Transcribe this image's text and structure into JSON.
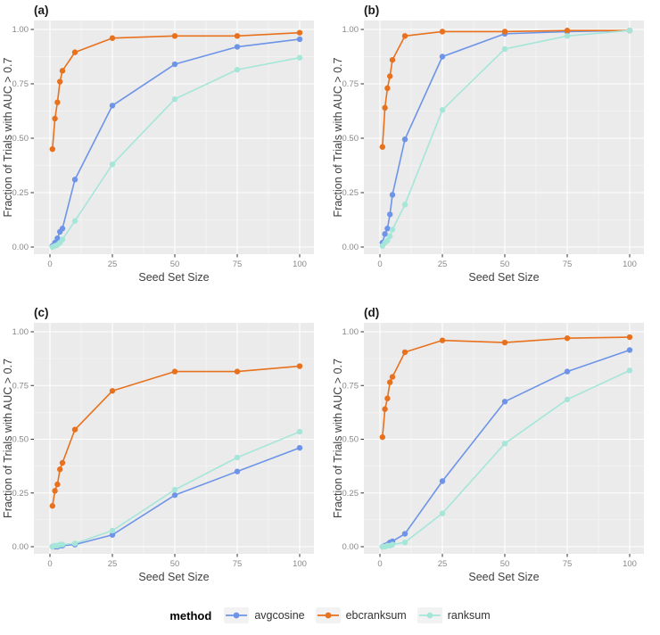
{
  "figure": {
    "x_axis_label": "Seed Set Size",
    "y_axis_label": "Fraction of Trials with AUC > 0.7",
    "x_tick_labels": [
      "0",
      "25",
      "50",
      "75",
      "100"
    ],
    "y_tick_labels": [
      "0.00",
      "0.25",
      "0.50",
      "0.75",
      "1.00"
    ],
    "panel_labels": [
      "(a)",
      "(b)",
      "(c)",
      "(d)"
    ]
  },
  "legend": {
    "title": "method",
    "entries": [
      {
        "key": "avgcosine",
        "label": "avgcosine"
      },
      {
        "key": "ebcranksum",
        "label": "ebcranksum"
      },
      {
        "key": "ranksum",
        "label": "ranksum"
      }
    ]
  },
  "colors": {
    "avgcosine": "#6D94E8",
    "ebcranksum": "#E8711E",
    "ranksum": "#A5E6D9",
    "panel_background": "#EBEBEB",
    "gridline_major": "#FFFFFF",
    "gridline_minor": "#FFFFFF",
    "tick_mark": "#333333",
    "tick_label": "#888888",
    "axis_title": "#404040",
    "panel_label": "#1A1A1A",
    "legend_key_background": "#F2F2F2"
  },
  "chart_data": [
    {
      "panel_label": "(a)",
      "type": "line",
      "xlabel": "Seed Set Size",
      "ylabel": "Fraction of Trials with AUC > 0.7",
      "xlim": [
        0,
        100
      ],
      "ylim": [
        0,
        1
      ],
      "x_ticks": [
        0,
        25,
        50,
        75,
        100
      ],
      "y_ticks": [
        0,
        0.25,
        0.5,
        0.75,
        1
      ],
      "x_minor_ticks": [
        12.5,
        37.5,
        62.5,
        87.5
      ],
      "y_minor_ticks": [
        0.125,
        0.375,
        0.625,
        0.875
      ],
      "grid": true,
      "x": [
        1,
        2,
        3,
        4,
        5,
        10,
        25,
        50,
        75,
        100
      ],
      "series": [
        {
          "name": "avgcosine",
          "values": [
            0.005,
            0.02,
            0.04,
            0.07,
            0.085,
            0.31,
            0.65,
            0.84,
            0.92,
            0.955
          ]
        },
        {
          "name": "ebcranksum",
          "values": [
            0.45,
            0.59,
            0.665,
            0.76,
            0.81,
            0.895,
            0.96,
            0.97,
            0.97,
            0.985
          ]
        },
        {
          "name": "ranksum",
          "values": [
            0.0,
            0.005,
            0.01,
            0.02,
            0.035,
            0.12,
            0.38,
            0.68,
            0.815,
            0.87
          ]
        }
      ]
    },
    {
      "panel_label": "(b)",
      "type": "line",
      "xlabel": "Seed Set Size",
      "ylabel": "Fraction of Trials with AUC > 0.7",
      "xlim": [
        0,
        100
      ],
      "ylim": [
        0,
        1
      ],
      "x_ticks": [
        0,
        25,
        50,
        75,
        100
      ],
      "y_ticks": [
        0,
        0.25,
        0.5,
        0.75,
        1
      ],
      "x_minor_ticks": [
        12.5,
        37.5,
        62.5,
        87.5
      ],
      "y_minor_ticks": [
        0.125,
        0.375,
        0.625,
        0.875
      ],
      "grid": true,
      "x": [
        1,
        2,
        3,
        4,
        5,
        10,
        25,
        50,
        75,
        100
      ],
      "series": [
        {
          "name": "avgcosine",
          "values": [
            0.02,
            0.06,
            0.085,
            0.15,
            0.24,
            0.495,
            0.875,
            0.98,
            0.99,
            0.995
          ]
        },
        {
          "name": "ebcranksum",
          "values": [
            0.46,
            0.64,
            0.73,
            0.785,
            0.86,
            0.97,
            0.99,
            0.99,
            0.995,
            0.995
          ]
        },
        {
          "name": "ranksum",
          "values": [
            0.005,
            0.02,
            0.03,
            0.05,
            0.08,
            0.195,
            0.63,
            0.91,
            0.97,
            0.995
          ]
        }
      ]
    },
    {
      "panel_label": "(c)",
      "type": "line",
      "xlabel": "Seed Set Size",
      "ylabel": "Fraction of Trials with AUC > 0.7",
      "xlim": [
        0,
        100
      ],
      "ylim": [
        0,
        1
      ],
      "x_ticks": [
        0,
        25,
        50,
        75,
        100
      ],
      "y_ticks": [
        0,
        0.25,
        0.5,
        0.75,
        1
      ],
      "x_minor_ticks": [
        12.5,
        37.5,
        62.5,
        87.5
      ],
      "y_minor_ticks": [
        0.125,
        0.375,
        0.625,
        0.875
      ],
      "grid": true,
      "x": [
        1,
        2,
        3,
        4,
        5,
        10,
        25,
        50,
        75,
        100
      ],
      "series": [
        {
          "name": "avgcosine",
          "values": [
            0.0,
            0.0,
            0.0,
            0.005,
            0.005,
            0.01,
            0.055,
            0.24,
            0.35,
            0.46
          ]
        },
        {
          "name": "ebcranksum",
          "values": [
            0.19,
            0.26,
            0.29,
            0.36,
            0.39,
            0.545,
            0.725,
            0.815,
            0.815,
            0.84
          ]
        },
        {
          "name": "ranksum",
          "values": [
            0.0,
            0.005,
            0.005,
            0.01,
            0.01,
            0.015,
            0.075,
            0.265,
            0.415,
            0.535
          ]
        }
      ]
    },
    {
      "panel_label": "(d)",
      "type": "line",
      "xlabel": "Seed Set Size",
      "ylabel": "Fraction of Trials with AUC > 0.7",
      "xlim": [
        0,
        100
      ],
      "ylim": [
        0,
        1
      ],
      "x_ticks": [
        0,
        25,
        50,
        75,
        100
      ],
      "y_ticks": [
        0,
        0.25,
        0.5,
        0.75,
        1
      ],
      "x_minor_ticks": [
        12.5,
        37.5,
        62.5,
        87.5
      ],
      "y_minor_ticks": [
        0.125,
        0.375,
        0.625,
        0.875
      ],
      "grid": true,
      "x": [
        1,
        2,
        3,
        4,
        5,
        10,
        25,
        50,
        75,
        100
      ],
      "series": [
        {
          "name": "avgcosine",
          "values": [
            0.0,
            0.005,
            0.01,
            0.02,
            0.025,
            0.06,
            0.305,
            0.675,
            0.815,
            0.915
          ]
        },
        {
          "name": "ebcranksum",
          "values": [
            0.51,
            0.64,
            0.69,
            0.765,
            0.79,
            0.905,
            0.96,
            0.95,
            0.97,
            0.975
          ]
        },
        {
          "name": "ranksum",
          "values": [
            0.0,
            0.0,
            0.005,
            0.005,
            0.01,
            0.02,
            0.155,
            0.48,
            0.685,
            0.82
          ]
        }
      ]
    }
  ]
}
